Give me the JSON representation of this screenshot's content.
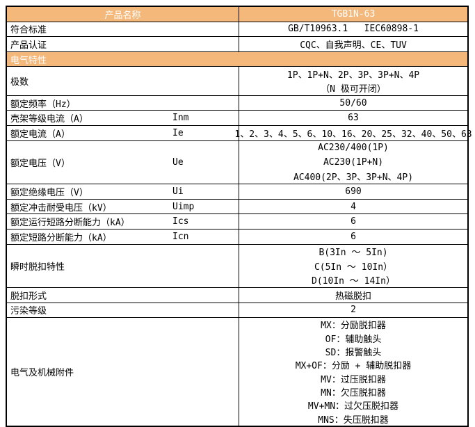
{
  "colors": {
    "header_bg": "#F5B87B",
    "header_text": "#FFFFFF",
    "border": "#000000",
    "body_text": "#000000"
  },
  "header": {
    "name_label": "产品名称",
    "model": "TGB1N-63"
  },
  "section_header": "电气特性",
  "rows": [
    {
      "label": "符合标准",
      "values": [
        "GB/T10963.1   IEC60898-1"
      ]
    },
    {
      "label": "产品认证",
      "values": [
        "CQC、自我声明、CE、TUV"
      ]
    },
    {
      "label": "极数",
      "values": [
        "1P、1P+N、2P、3P、3P+N、4P",
        "（N 极可开闭）"
      ]
    },
    {
      "label": "额定频率（Hz）",
      "values": [
        "50/60"
      ]
    },
    {
      "label": "壳架等级电流（A）",
      "symbol": "Inm",
      "values": [
        "63"
      ]
    },
    {
      "label": "额定电流（A）",
      "symbol": "Ie",
      "values": [
        "1、2、3、4、5、6、10、16、20、25、32、40、50、63"
      ]
    },
    {
      "label": "额定电压（V）",
      "symbol": "Ue",
      "values": [
        "AC230/400(1P)",
        "AC230(1P+N)",
        "AC400(2P、3P、3P+N、4P)"
      ]
    },
    {
      "label": "额定绝缘电压（V）",
      "symbol": "Ui",
      "values": [
        "690"
      ]
    },
    {
      "label": "额定冲击耐受电压（kV）",
      "symbol": "Uimp",
      "values": [
        "4"
      ]
    },
    {
      "label": "额定运行短路分断能力（kA）",
      "symbol": "Ics",
      "values": [
        "6"
      ]
    },
    {
      "label": "额定短路分断能力（kA）",
      "symbol": "Icn",
      "values": [
        "6"
      ]
    },
    {
      "label": "瞬时脱扣特性",
      "values": [
        "B(3In ～ 5In)",
        "C(5In ～ 10In）",
        "D(10In ～ 14In）"
      ]
    },
    {
      "label": "脱扣形式",
      "values": [
        "热磁脱扣"
      ]
    },
    {
      "label": "污染等级",
      "values": [
        "2"
      ]
    },
    {
      "label": "电气及机械附件",
      "values": [
        "MX：分励脱扣器",
        "OF：辅助触头",
        "SD：报警触头",
        "MX+OF：分励 + 辅助脱扣器",
        "MV：过压脱扣器",
        "MN：欠压脱扣器",
        "MV+MN：过欠压脱扣器",
        "MNS：失压脱扣器"
      ]
    }
  ]
}
